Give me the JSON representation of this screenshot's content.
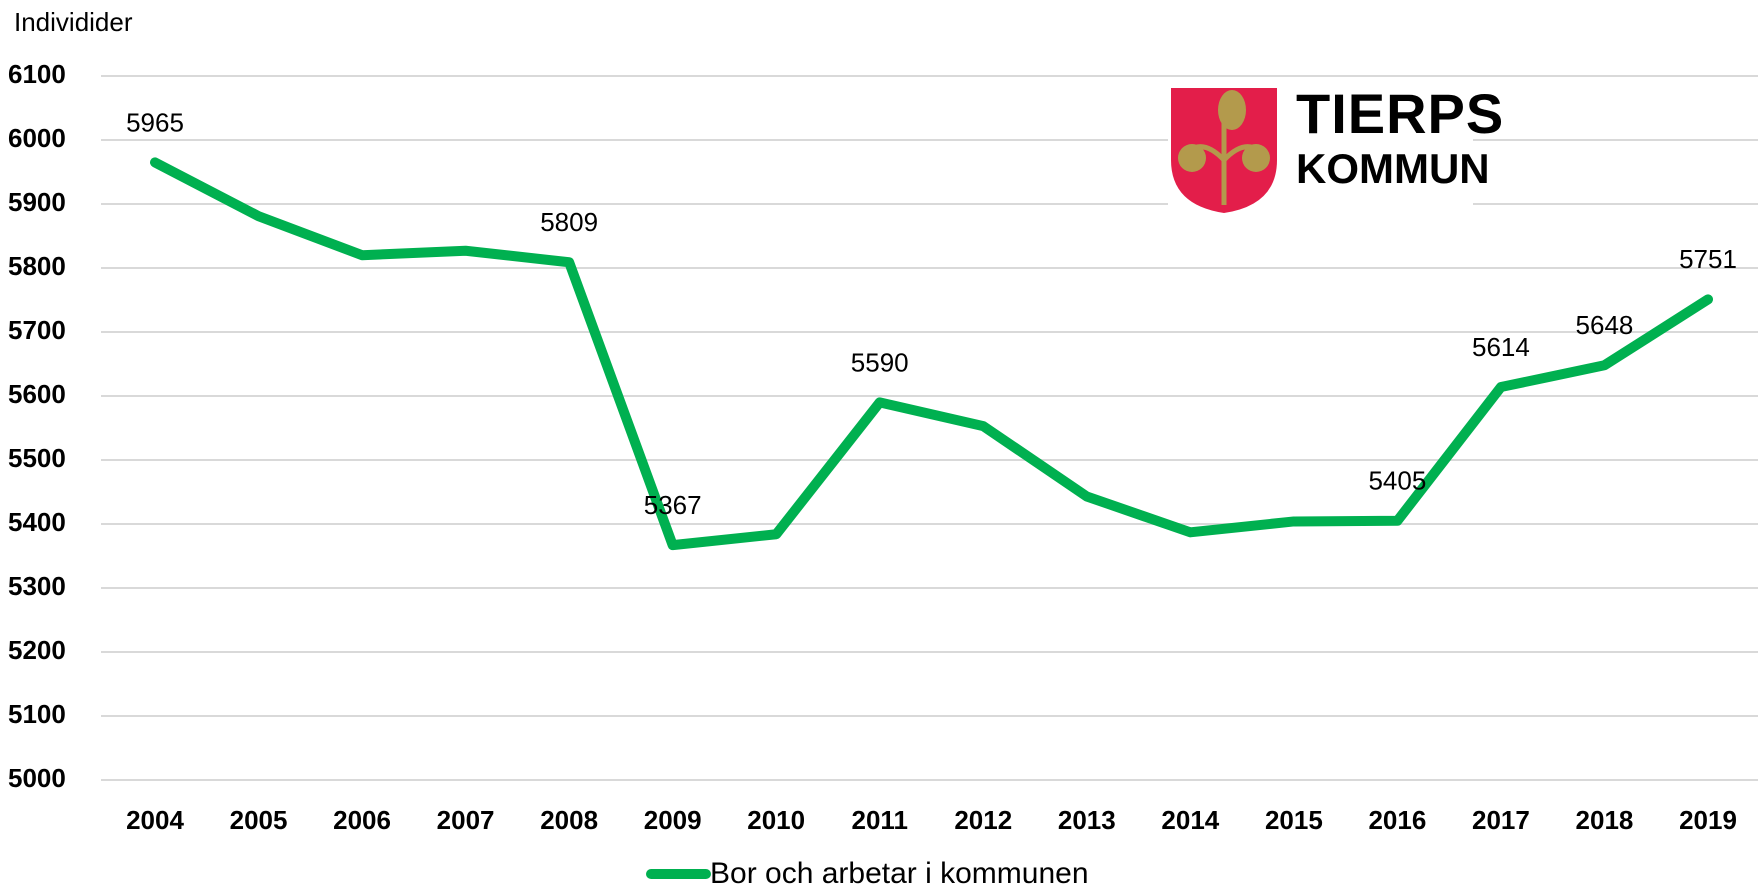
{
  "chart_data": {
    "type": "line",
    "y_label": "Individider",
    "categories": [
      "2004",
      "2005",
      "2006",
      "2007",
      "2008",
      "2009",
      "2010",
      "2011",
      "2012",
      "2013",
      "2014",
      "2015",
      "2016",
      "2017",
      "2018",
      "2019"
    ],
    "series": [
      {
        "name": "Bor och arbetar i kommunen",
        "color": "#00b050",
        "values": [
          5965,
          5881,
          5820,
          5827,
          5809,
          5367,
          5384,
          5590,
          5553,
          5443,
          5387,
          5404,
          5405,
          5614,
          5648,
          5751
        ],
        "value_labels": [
          "5965",
          null,
          null,
          null,
          "5809",
          "5367",
          null,
          "5590",
          null,
          null,
          null,
          null,
          "5405",
          "5614",
          "5648",
          "5751"
        ]
      }
    ],
    "ylim": [
      5000,
      6100
    ],
    "yticks": [
      5000,
      5100,
      5200,
      5300,
      5400,
      5500,
      5600,
      5700,
      5800,
      5900,
      6000,
      6100
    ],
    "grid": true,
    "legend": "bottom",
    "logo": {
      "line1": "TIERPS",
      "line2": "KOMMUN"
    }
  }
}
